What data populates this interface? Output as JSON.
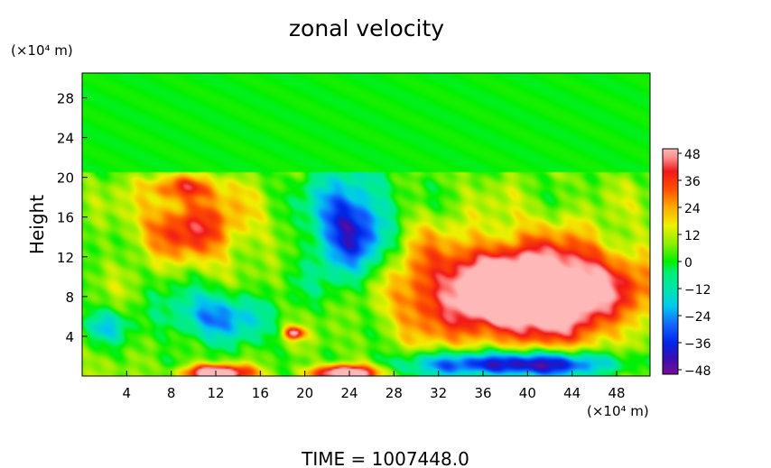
{
  "chart_data": {
    "type": "heatmap",
    "title": "zonal velocity",
    "xlabel": "",
    "ylabel": "Height",
    "x_unit": "(×10⁴ m)",
    "y_unit": "(×10⁴ m)",
    "xlim": [
      0,
      51
    ],
    "ylim": [
      0,
      30.5
    ],
    "x_ticks": [
      4,
      8,
      12,
      16,
      20,
      24,
      28,
      32,
      36,
      40,
      44,
      48
    ],
    "y_ticks": [
      4,
      8,
      12,
      16,
      20,
      24,
      28
    ],
    "colorbar": {
      "ticks": [
        48,
        36,
        24,
        12,
        0,
        -12,
        -24,
        -36,
        -48
      ],
      "min": -50,
      "max": 50,
      "stops": [
        {
          "value": -50,
          "color": "#7a0d96"
        },
        {
          "value": -43,
          "color": "#3a0fb2"
        },
        {
          "value": -36,
          "color": "#0026e8"
        },
        {
          "value": -28,
          "color": "#1464ff"
        },
        {
          "value": -20,
          "color": "#00c8f0"
        },
        {
          "value": -12,
          "color": "#00e6aa"
        },
        {
          "value": -5,
          "color": "#00f078"
        },
        {
          "value": 0,
          "color": "#00f000"
        },
        {
          "value": 8,
          "color": "#8cf000"
        },
        {
          "value": 16,
          "color": "#f0f000"
        },
        {
          "value": 24,
          "color": "#ffaa00"
        },
        {
          "value": 32,
          "color": "#ff5000"
        },
        {
          "value": 40,
          "color": "#f01818"
        },
        {
          "value": 46,
          "color": "#ff8c8c"
        },
        {
          "value": 50,
          "color": "#ffb8b8"
        }
      ]
    },
    "field_features": [
      {
        "x": 40,
        "y": 8.5,
        "sx": 8.0,
        "sy": 4.0,
        "amp": 55
      },
      {
        "x": 40,
        "y": 8.5,
        "sx": 11.5,
        "sy": 6.5,
        "amp": 25
      },
      {
        "x": 39,
        "y": 1.2,
        "sx": 9.0,
        "sy": 1.3,
        "amp": -58
      },
      {
        "x": 24,
        "y": 15,
        "sx": 3.5,
        "sy": 5.5,
        "amp": -45
      },
      {
        "x": 10,
        "y": 15,
        "sx": 5.0,
        "sy": 3.5,
        "amp": 33
      },
      {
        "x": 9,
        "y": 19,
        "sx": 3.0,
        "sy": 1.2,
        "amp": 28
      },
      {
        "x": 12,
        "y": 6,
        "sx": 4.5,
        "sy": 2.5,
        "amp": -30
      },
      {
        "x": 2,
        "y": 5,
        "sx": 2.0,
        "sy": 1.5,
        "amp": -18
      },
      {
        "x": 12,
        "y": 0.3,
        "sx": 3.0,
        "sy": 0.8,
        "amp": 60
      },
      {
        "x": 23.5,
        "y": 0.3,
        "sx": 3.0,
        "sy": 0.8,
        "amp": 60
      },
      {
        "x": 19,
        "y": 4.3,
        "sx": 0.9,
        "sy": 0.6,
        "amp": 40
      },
      {
        "x": 30,
        "y": 10,
        "sx": 2.0,
        "sy": 6.0,
        "amp": 8
      }
    ],
    "upper_layer": {
      "from_height": 20.6,
      "value": 0
    }
  },
  "footer": {
    "time_label": "TIME = 1007448.0"
  }
}
